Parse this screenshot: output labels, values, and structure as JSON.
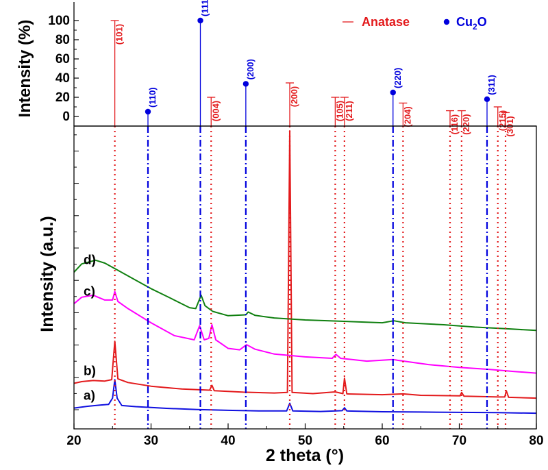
{
  "chart_data": [
    {
      "type": "stem",
      "panel": "reference",
      "ylabel": "Intensity (%)",
      "ylim": [
        -15,
        110
      ],
      "yticks": [
        0,
        20,
        40,
        60,
        80,
        100
      ],
      "legend": {
        "placement": "top-right",
        "entries": [
          {
            "label": "Anatase",
            "marker": "line",
            "color": "#e31a1c"
          },
          {
            "label": "Cu",
            "subscript": "2",
            "label_suffix": "O",
            "marker": "dot",
            "color": "#0000dd"
          }
        ]
      },
      "series": [
        {
          "name": "Anatase",
          "color": "#e31a1c",
          "peaks": [
            {
              "x": 25.3,
              "y": 100,
              "hkl": "(101)"
            },
            {
              "x": 37.8,
              "y": 20,
              "hkl": "(004)"
            },
            {
              "x": 48.0,
              "y": 35,
              "hkl": "(200)"
            },
            {
              "x": 53.9,
              "y": 20,
              "hkl": "(105)"
            },
            {
              "x": 55.1,
              "y": 20,
              "hkl": "(211)"
            },
            {
              "x": 62.7,
              "y": 14,
              "hkl": "(204)"
            },
            {
              "x": 68.8,
              "y": 6,
              "hkl": "(116)"
            },
            {
              "x": 70.3,
              "y": 6,
              "hkl": "(220)"
            },
            {
              "x": 75.0,
              "y": 10,
              "hkl": "(215)"
            },
            {
              "x": 76.0,
              "y": 4,
              "hkl": "(301)"
            }
          ]
        },
        {
          "name": "Cu2O",
          "color": "#0000dd",
          "peaks": [
            {
              "x": 29.6,
              "y": 5,
              "hkl": "(110)"
            },
            {
              "x": 36.4,
              "y": 100,
              "hkl": "(111)"
            },
            {
              "x": 42.3,
              "y": 34,
              "hkl": "(200)"
            },
            {
              "x": 61.4,
              "y": 25,
              "hkl": "(220)"
            },
            {
              "x": 73.6,
              "y": 18,
              "hkl": "(311)"
            }
          ]
        }
      ]
    },
    {
      "type": "line",
      "panel": "patterns",
      "xlabel": "2 theta (°)",
      "ylabel": "Intensity (a.u.)",
      "xlim": [
        20,
        80
      ],
      "xticks": [
        20,
        30,
        40,
        50,
        60,
        70,
        80
      ],
      "ylim": [
        0,
        100
      ],
      "yticks_labeled": false,
      "series": [
        {
          "name": "a)",
          "color": "#1010e0",
          "points": [
            [
              20,
              2.5
            ],
            [
              22,
              3.2
            ],
            [
              23.5,
              3.6
            ],
            [
              24.5,
              3.8
            ],
            [
              25.0,
              6
            ],
            [
              25.3,
              12.5
            ],
            [
              25.6,
              6
            ],
            [
              26.2,
              3.4
            ],
            [
              28,
              3.0
            ],
            [
              32,
              2.4
            ],
            [
              36,
              2.0
            ],
            [
              40,
              1.7
            ],
            [
              44,
              1.5
            ],
            [
              47.6,
              1.5
            ],
            [
              48.0,
              4.2
            ],
            [
              48.4,
              1.5
            ],
            [
              52,
              1.3
            ],
            [
              54.8,
              1.6
            ],
            [
              55.1,
              2.6
            ],
            [
              55.4,
              1.5
            ],
            [
              60,
              1.2
            ],
            [
              65,
              1.1
            ],
            [
              70,
              1.0
            ],
            [
              75,
              0.9
            ],
            [
              80,
              0.7
            ]
          ]
        },
        {
          "name": "b)",
          "color": "#e31a1c",
          "points": [
            [
              20,
              11.2
            ],
            [
              21,
              11.8
            ],
            [
              22.5,
              12.2
            ],
            [
              24,
              12.0
            ],
            [
              24.9,
              12.5
            ],
            [
              25.3,
              26
            ],
            [
              25.7,
              12.8
            ],
            [
              27,
              11.5
            ],
            [
              30,
              10.2
            ],
            [
              34,
              9.2
            ],
            [
              37.6,
              8.8
            ],
            [
              37.9,
              10.5
            ],
            [
              38.2,
              8.6
            ],
            [
              42,
              8.1
            ],
            [
              46,
              7.8
            ],
            [
              47.7,
              8.0
            ],
            [
              48.0,
              100
            ],
            [
              48.3,
              8.0
            ],
            [
              51,
              7.6
            ],
            [
              53.9,
              8.2
            ],
            [
              54.9,
              7.6
            ],
            [
              55.1,
              13
            ],
            [
              55.4,
              7.5
            ],
            [
              60,
              7.2
            ],
            [
              62.7,
              7.5
            ],
            [
              65,
              7.0
            ],
            [
              70.1,
              6.8
            ],
            [
              70.3,
              8.0
            ],
            [
              70.6,
              6.7
            ],
            [
              75,
              6.4
            ],
            [
              75.9,
              6.4
            ],
            [
              76.1,
              8.6
            ],
            [
              76.4,
              6.3
            ],
            [
              80,
              6.0
            ]
          ]
        },
        {
          "name": "c)",
          "color": "#ff00ff",
          "points": [
            [
              20,
              39.2
            ],
            [
              21,
              41.5
            ],
            [
              22.5,
              42.2
            ],
            [
              24,
              40.5
            ],
            [
              25.0,
              40.5
            ],
            [
              25.3,
              43.5
            ],
            [
              25.7,
              40
            ],
            [
              27,
              37.5
            ],
            [
              30,
              32.5
            ],
            [
              33,
              28.0
            ],
            [
              35.6,
              26.5
            ],
            [
              36.3,
              31.5
            ],
            [
              36.9,
              26.5
            ],
            [
              37.5,
              27.0
            ],
            [
              37.9,
              31.8
            ],
            [
              38.4,
              26.5
            ],
            [
              40,
              23.5
            ],
            [
              41.5,
              23.0
            ],
            [
              42.4,
              24.8
            ],
            [
              43.5,
              23.2
            ],
            [
              46,
              21.5
            ],
            [
              50,
              20.5
            ],
            [
              53.5,
              20.0
            ],
            [
              54.0,
              21.4
            ],
            [
              54.6,
              20.0
            ],
            [
              58,
              19.0
            ],
            [
              61.4,
              19.6
            ],
            [
              62,
              19.3
            ],
            [
              66,
              17.8
            ],
            [
              70,
              16.8
            ],
            [
              74,
              16.1
            ],
            [
              77,
              15.4
            ],
            [
              80,
              14.8
            ]
          ]
        },
        {
          "name": "d)",
          "color": "#108010",
          "points": [
            [
              20,
              50.3
            ],
            [
              21,
              53.2
            ],
            [
              22.8,
              54.5
            ],
            [
              24,
              53.5
            ],
            [
              26,
              50.5
            ],
            [
              28,
              47.5
            ],
            [
              30,
              44.5
            ],
            [
              32.5,
              41.2
            ],
            [
              35,
              37.8
            ],
            [
              35.8,
              37.5
            ],
            [
              36.5,
              42.2
            ],
            [
              37.0,
              38.5
            ],
            [
              38,
              36.5
            ],
            [
              40,
              35.0
            ],
            [
              42.3,
              35.3
            ],
            [
              42.6,
              36.3
            ],
            [
              43.5,
              35.1
            ],
            [
              46,
              34.2
            ],
            [
              50,
              33.5
            ],
            [
              55,
              33.0
            ],
            [
              60,
              32.5
            ],
            [
              61.5,
              33.2
            ],
            [
              63,
              32.5
            ],
            [
              68,
              31.8
            ],
            [
              72,
              31.0
            ],
            [
              76,
              30.4
            ],
            [
              80,
              29.8
            ]
          ]
        }
      ]
    }
  ]
}
